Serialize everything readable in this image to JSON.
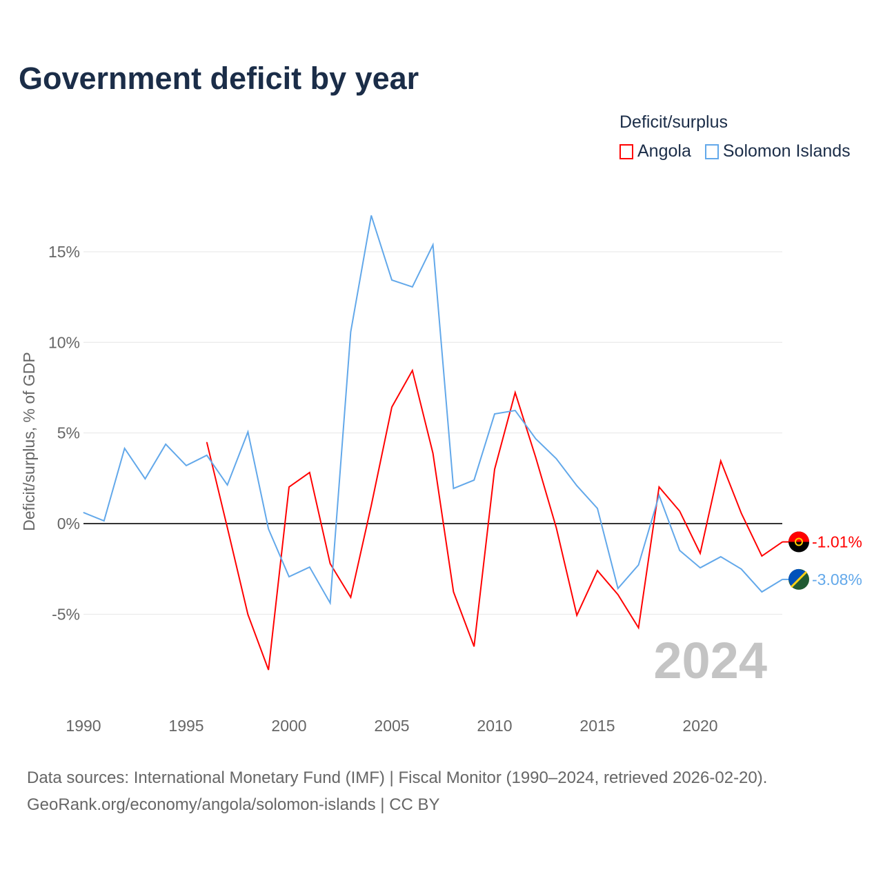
{
  "title": "Government deficit by year",
  "legend": {
    "title": "Deficit/surplus",
    "items": [
      {
        "label": "Angola",
        "color": "#ff0000"
      },
      {
        "label": "Solomon Islands",
        "color": "#62a8ea"
      }
    ]
  },
  "source": {
    "line1": "Data sources: International Monetary Fund (IMF) | Fiscal Monitor (1990–2024, retrieved 2026-02-20).",
    "line2": "GeoRank.org/economy/angola/solomon-islands | CC BY"
  },
  "chart_data": {
    "type": "line",
    "title": "Government deficit by year",
    "ylabel": "Deficit/surplus, % of GDP",
    "xlabel": "",
    "year_label": "2024",
    "xlim": [
      1990,
      2024
    ],
    "ylim": [
      -9.5,
      18
    ],
    "xticks": [
      1990,
      1995,
      2000,
      2005,
      2010,
      2015,
      2020
    ],
    "yticks": [
      {
        "v": -5,
        "label": "-5%"
      },
      {
        "v": 0,
        "label": "0%"
      },
      {
        "v": 5,
        "label": "5%"
      },
      {
        "v": 10,
        "label": "10%"
      },
      {
        "v": 15,
        "label": "15%"
      }
    ],
    "series": [
      {
        "name": "Angola",
        "color": "#ff0000",
        "end_label": "-1.01%",
        "x": [
          1996,
          1997,
          1998,
          1999,
          2000,
          2001,
          2002,
          2003,
          2004,
          2005,
          2006,
          2007,
          2008,
          2009,
          2010,
          2011,
          2012,
          2013,
          2014,
          2015,
          2016,
          2017,
          2018,
          2019,
          2020,
          2021,
          2022,
          2023,
          2024
        ],
        "values": [
          4.49,
          -0.23,
          -5.02,
          -8.07,
          2.02,
          2.82,
          -2.21,
          -4.07,
          1.0,
          6.43,
          8.45,
          3.88,
          -3.77,
          -6.78,
          3.0,
          7.23,
          3.65,
          -0.23,
          -5.06,
          -2.59,
          -3.92,
          -5.75,
          2.02,
          0.69,
          -1.64,
          3.46,
          0.57,
          -1.79,
          -1.01
        ]
      },
      {
        "name": "Solomon Islands",
        "color": "#62a8ea",
        "end_label": "-3.08%",
        "x": [
          1990,
          1991,
          1992,
          1993,
          1994,
          1995,
          1996,
          1997,
          1998,
          1999,
          2000,
          2001,
          2002,
          2003,
          2004,
          2005,
          2006,
          2007,
          2008,
          2009,
          2010,
          2011,
          2012,
          2013,
          2014,
          2015,
          2016,
          2017,
          2018,
          2019,
          2020,
          2021,
          2022,
          2023,
          2024
        ],
        "values": [
          0.61,
          0.15,
          4.15,
          2.47,
          4.38,
          3.2,
          3.77,
          2.13,
          5.06,
          -0.3,
          -2.93,
          -2.4,
          -4.38,
          10.58,
          17.0,
          13.44,
          13.06,
          15.38,
          1.94,
          2.4,
          6.05,
          6.24,
          4.68,
          3.58,
          2.09,
          0.84,
          -3.58,
          -2.28,
          1.56,
          -1.48,
          -2.44,
          -1.83,
          -2.51,
          -3.77,
          -3.08
        ]
      }
    ]
  }
}
